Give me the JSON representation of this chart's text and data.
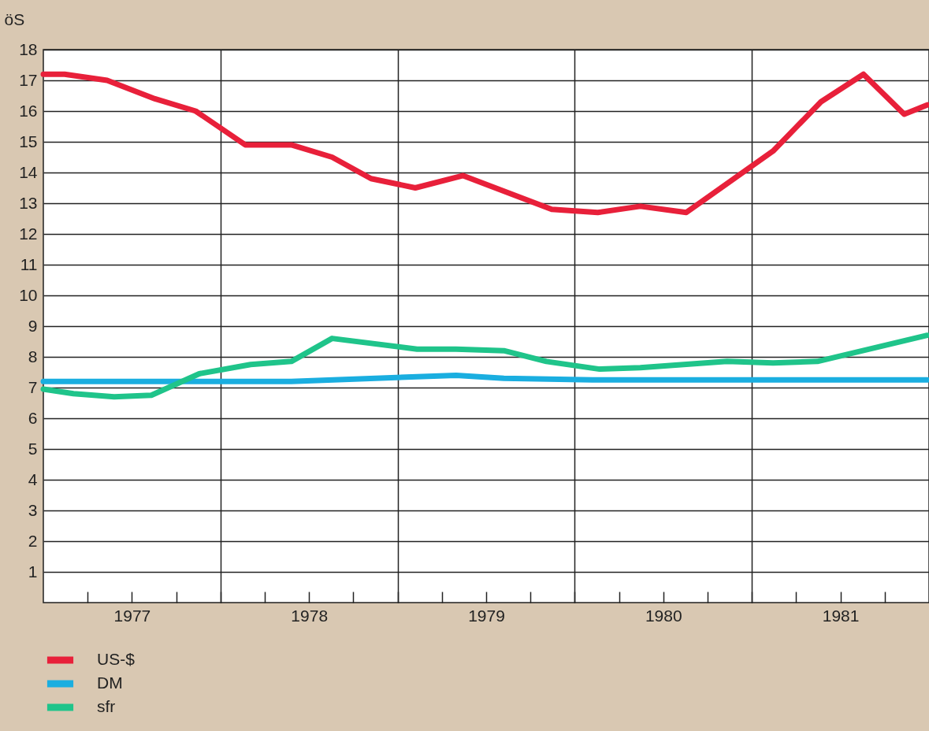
{
  "chart_data": {
    "type": "line",
    "ylabel": "öS",
    "xlim": [
      1977,
      1982
    ],
    "xticks": [
      {
        "value": 1977.25,
        "label": null
      },
      {
        "value": 1977.5,
        "label": "1977"
      },
      {
        "value": 1977.75,
        "label": null
      },
      {
        "value": 1978,
        "label": null
      },
      {
        "value": 1978.25,
        "label": null
      },
      {
        "value": 1978.5,
        "label": "1978"
      },
      {
        "value": 1978.75,
        "label": null
      },
      {
        "value": 1979,
        "label": null
      },
      {
        "value": 1979.25,
        "label": null
      },
      {
        "value": 1979.5,
        "label": "1979"
      },
      {
        "value": 1979.75,
        "label": null
      },
      {
        "value": 1980,
        "label": null
      },
      {
        "value": 1980.25,
        "label": null
      },
      {
        "value": 1980.5,
        "label": "1980"
      },
      {
        "value": 1980.75,
        "label": null
      },
      {
        "value": 1981,
        "label": null
      },
      {
        "value": 1981.25,
        "label": null
      },
      {
        "value": 1981.5,
        "label": "1981"
      },
      {
        "value": 1981.75,
        "label": null
      }
    ],
    "ylim": [
      0,
      18
    ],
    "yticks": [
      1,
      2,
      3,
      4,
      5,
      6,
      7,
      8,
      9,
      10,
      11,
      12,
      13,
      14,
      15,
      16,
      17,
      18
    ],
    "grid": true,
    "legend": "bottom left",
    "line_style": "solid",
    "series": [
      {
        "name": "US-$",
        "color": "#e8203a",
        "x": [
          1977.0,
          1977.12,
          1977.36,
          1977.63,
          1977.86,
          1978.14,
          1978.4,
          1978.63,
          1978.85,
          1979.1,
          1979.37,
          1979.87,
          1980.13,
          1980.37,
          1980.63,
          1981.12,
          1981.39,
          1981.63,
          1981.86,
          1981.99
        ],
        "values": [
          17.2,
          17.2,
          17.0,
          16.4,
          16.0,
          14.9,
          14.9,
          14.5,
          13.8,
          13.5,
          13.9,
          12.8,
          12.7,
          12.9,
          12.7,
          14.7,
          16.3,
          17.2,
          15.9,
          16.2
        ]
      },
      {
        "name": "DM",
        "color": "#1aaee0",
        "x": [
          1977.0,
          1978.4,
          1979.33,
          1979.6,
          1980.1,
          1981.99
        ],
        "values": [
          7.2,
          7.2,
          7.4,
          7.3,
          7.25,
          7.25
        ]
      },
      {
        "name": "sfr",
        "color": "#1fc48a",
        "x": [
          1977.0,
          1977.17,
          1977.4,
          1977.61,
          1977.88,
          1978.17,
          1978.4,
          1978.63,
          1979.11,
          1979.33,
          1979.6,
          1979.84,
          1980.14,
          1980.37,
          1980.86,
          1981.12,
          1981.37,
          1981.99
        ],
        "values": [
          6.95,
          6.8,
          6.7,
          6.75,
          7.45,
          7.75,
          7.85,
          8.6,
          8.25,
          8.25,
          8.2,
          7.85,
          7.6,
          7.65,
          7.85,
          7.8,
          7.85,
          8.7
        ]
      }
    ]
  }
}
